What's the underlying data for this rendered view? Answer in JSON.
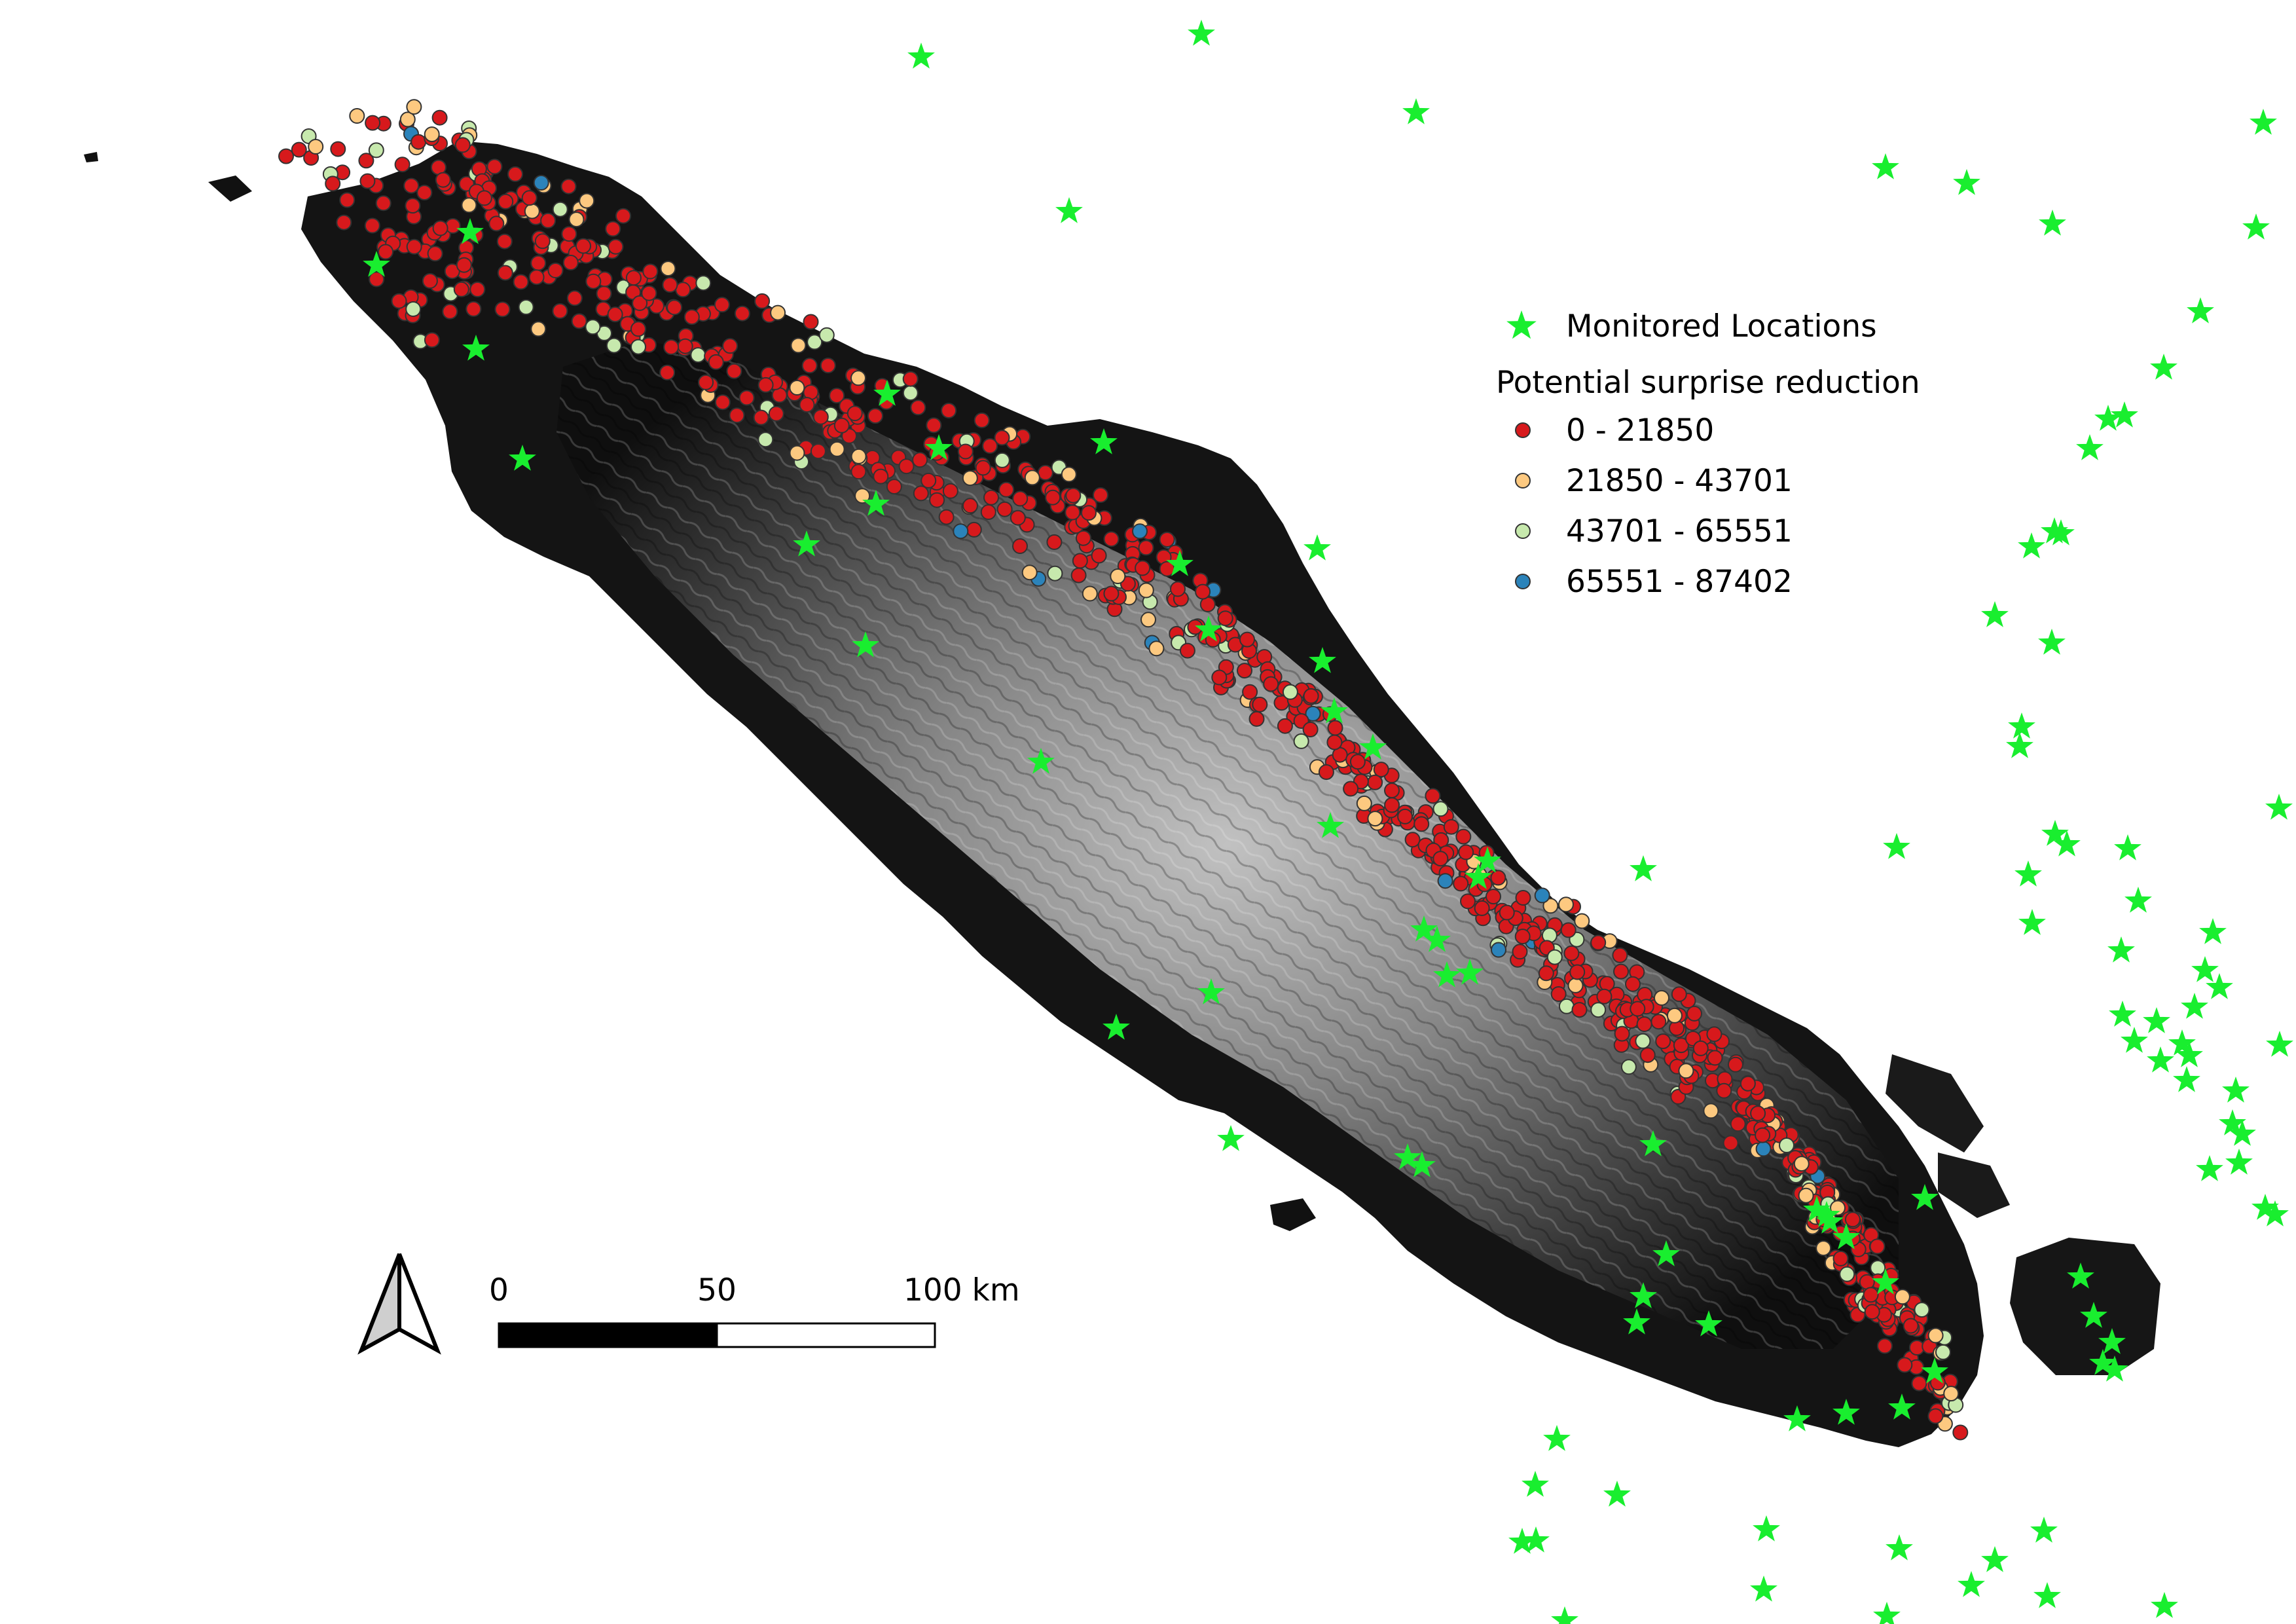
{
  "legend": {
    "monitored_label": "Monitored Locations",
    "heading": "Potential surprise reduction",
    "classes": [
      {
        "label": "0 - 21850",
        "color": "#d7191c"
      },
      {
        "label": "21850 - 43701",
        "color": "#fdc980"
      },
      {
        "label": "43701 - 65551",
        "color": "#c7e9ad"
      },
      {
        "label": "65551 - 87402",
        "color": "#2b83ba"
      }
    ],
    "star_color": "#19ee2f"
  },
  "scale_bar": {
    "labels": [
      "0",
      "50",
      "100 km"
    ]
  },
  "north_arrow": {
    "icon": "north-arrow-icon"
  },
  "colors": {
    "land_dark": "#111111",
    "land_mid": "#6e6e6e",
    "land_light": "#d9d9d9",
    "marker_outline": "#333333"
  }
}
